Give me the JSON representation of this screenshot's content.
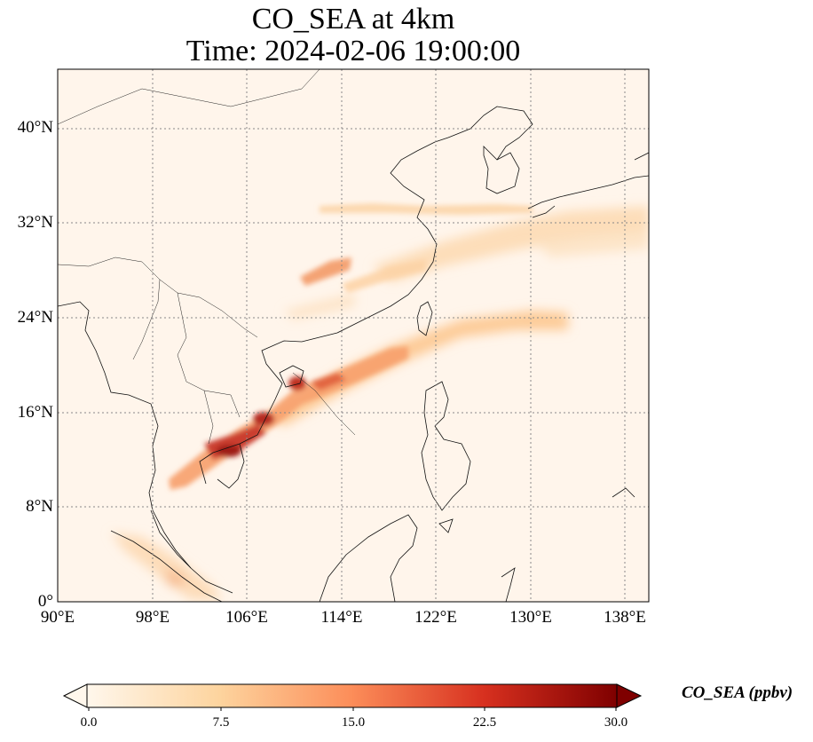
{
  "title": {
    "line1": "CO_SEA at 4km",
    "line2": "Time: 2024-02-06 19:00:00"
  },
  "map": {
    "lon_range": [
      90,
      140
    ],
    "lat_range": [
      0,
      45
    ],
    "lon_ticks": [
      "90°E",
      "98°E",
      "106°E",
      "114°E",
      "122°E",
      "130°E",
      "138°E"
    ],
    "lat_ticks": [
      "0°",
      "8°N",
      "16°N",
      "24°N",
      "32°N",
      "40°N"
    ],
    "gridlines": true,
    "background_color": "#fff5eb",
    "plumes": [
      {
        "name": "indochina-plume",
        "intensity": "high"
      },
      {
        "name": "hainan-taiwan-plume",
        "intensity": "medium"
      },
      {
        "name": "central-china-plume",
        "intensity": "medium"
      },
      {
        "name": "east-china-japan-plume",
        "intensity": "low"
      },
      {
        "name": "yellow-sea-band",
        "intensity": "low"
      },
      {
        "name": "sumatra-plume",
        "intensity": "low"
      }
    ]
  },
  "colorbar": {
    "label": "CO_SEA (ppbv)",
    "ticks": [
      "0.0",
      "7.5",
      "15.0",
      "22.5",
      "30.0"
    ],
    "min": 0,
    "max": 30,
    "extend": "both",
    "colormap": "OrRd",
    "colors": [
      "#fff7ec",
      "#fdd49e",
      "#fc8d59",
      "#d7301f",
      "#7f0000"
    ]
  }
}
